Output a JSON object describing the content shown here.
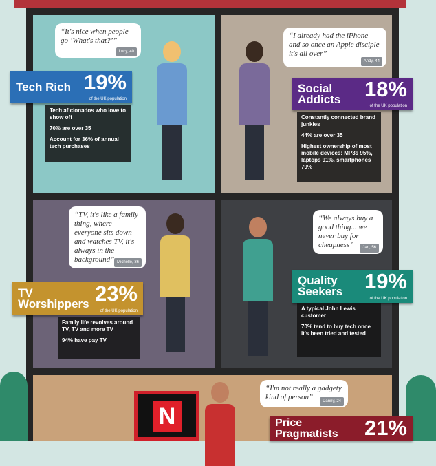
{
  "panels": [
    {
      "quote": "“It's nice when people go ‘What's that?’”",
      "author": "Lucy, 40",
      "name": "Tech Rich",
      "percent": "19%",
      "population": "of the UK population",
      "facts": [
        "Tech aficionados who love to show off",
        "70% are over 35",
        "Account for 36% of annual tech purchases"
      ]
    },
    {
      "quote": "“I already had the iPhone and so once an Apple disciple it's all over”",
      "author": "Andy, 44",
      "name": "Social Addicts",
      "percent": "18%",
      "population": "of the UK population",
      "facts": [
        "Constantly connected brand junkies",
        "44% are over 35",
        "Highest ownership of most mobile devices: MP3s 95%, laptops 91%, smartphones 79%"
      ]
    },
    {
      "quote": "“TV, it's like a family thing, where everyone sits down and watches TV, it's always in the background”",
      "author": "Michelle, 36",
      "name": "TV Worshippers",
      "percent": "23%",
      "population": "of the UK population",
      "facts": [
        "Family life revolves around TV, TV and more TV",
        "94% have pay TV"
      ]
    },
    {
      "quote": "“We always buy a good thing... we never buy for cheapness”",
      "author": "Jan, 56",
      "name": "Quality Seekers",
      "percent": "19%",
      "population": "of the UK population",
      "facts": [
        "A typical John Lewis customer",
        "70% tend to buy tech once it's been tried and tested"
      ]
    },
    {
      "quote": "“I'm not really a gadgety kind of person”",
      "author": "Danny, 24",
      "name": "Price Pragmatists",
      "percent": "21%",
      "logo": "N"
    }
  ]
}
